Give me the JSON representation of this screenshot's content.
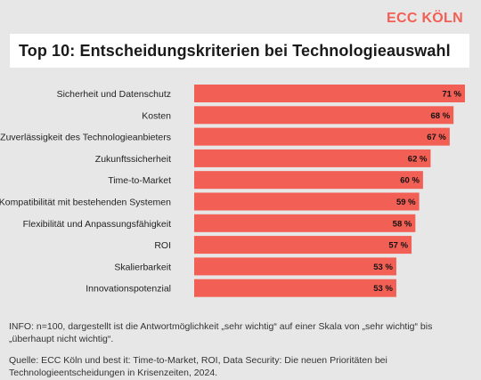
{
  "brand": "ECC KÖLN",
  "title": "Top 10: Entscheidungskriterien bei Technologieauswahl",
  "info": "INFO: n=100, dargestellt ist die Antwortmöglichkeit „sehr wichtig“ auf einer Skala von „sehr wichtig“ bis „überhaupt nicht wichtig“.",
  "source": "Quelle: ECC Köln und best it: Time-to-Market, ROI, Data Security: Die neuen Prioritäten bei Technologieentscheidungen in Krisenzeiten, 2024.",
  "colors": {
    "bar": "#f25f54",
    "background": "#e7e7e7",
    "brand": "#f25f54"
  },
  "chart_data": {
    "type": "bar",
    "orientation": "horizontal",
    "categories": [
      "Sicherheit und Datenschutz",
      "Kosten",
      "Zuverlässigkeit des Technologieanbieters",
      "Zukunftssicherheit",
      "Time-to-Market",
      "Kompatibilität mit bestehenden Systemen",
      "Flexibilität und Anpassungsfähigkeit",
      "ROI",
      "Skalierbarkeit",
      "Innovationspotenzial"
    ],
    "values": [
      71,
      68,
      67,
      62,
      60,
      59,
      58,
      57,
      53,
      53
    ],
    "value_labels": [
      "71 %",
      "68 %",
      "67 %",
      "62 %",
      "60 %",
      "59 %",
      "58 %",
      "57 %",
      "53 %",
      "53 %"
    ],
    "unit": "%",
    "xlim": [
      0,
      71
    ],
    "grid": false,
    "legend": "none"
  }
}
